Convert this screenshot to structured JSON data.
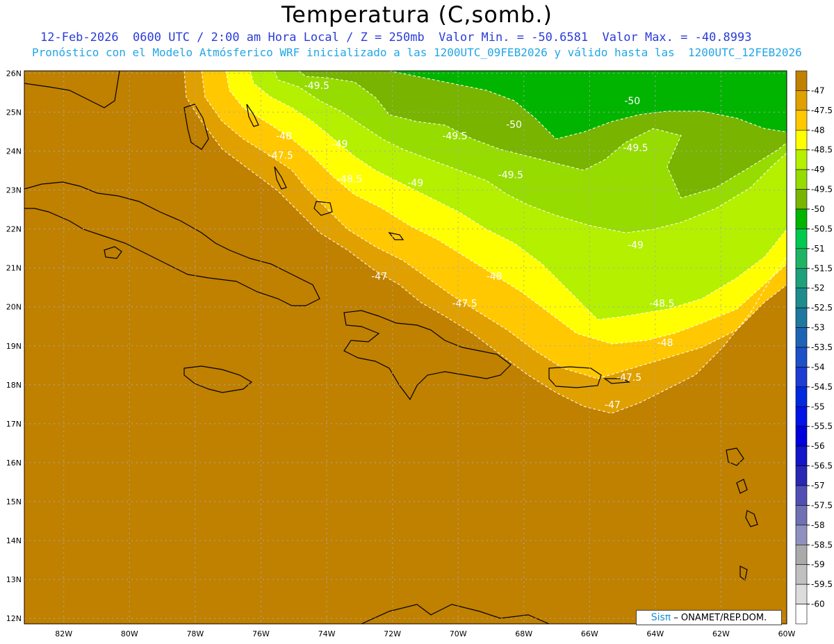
{
  "title": "Temperatura (C,somb.)",
  "subtitle_line1": "12-Feb-2026  0600 UTC / 2:00 am Hora Local / Z = 250mb  Valor Min. = -50.6581  Valor Max. = -40.8993",
  "subtitle_line2": "Pronóstico con el Modelo Atmósferico WRF inicializado a las 1200UTC_09FEB2026 y válido hasta las  1200UTC_12FEB2026",
  "credit": {
    "brand": "Sisπ",
    "text": "– ONAMET/REP.DOM."
  },
  "map": {
    "lon_labels": [
      "82W",
      "80W",
      "78W",
      "76W",
      "74W",
      "72W",
      "70W",
      "68W",
      "66W",
      "64W",
      "62W",
      "60W"
    ],
    "lat_labels": [
      "26N",
      "25N",
      "24N",
      "23N",
      "22N",
      "21N",
      "20N",
      "19N",
      "18N",
      "17N",
      "16N",
      "15N",
      "14N",
      "13N",
      "12N"
    ],
    "contour_labels": [
      {
        "text": "-49.5",
        "lon": -74.3,
        "lat": 25.6
      },
      {
        "text": "-50",
        "lon": -64.7,
        "lat": 25.2
      },
      {
        "text": "-50",
        "lon": -68.3,
        "lat": 24.6
      },
      {
        "text": "-49.5",
        "lon": -70.1,
        "lat": 24.3
      },
      {
        "text": "-49.5",
        "lon": -64.6,
        "lat": 24.0
      },
      {
        "text": "-49",
        "lon": -73.6,
        "lat": 24.1
      },
      {
        "text": "-48",
        "lon": -75.3,
        "lat": 24.3
      },
      {
        "text": "-47.5",
        "lon": -75.4,
        "lat": 23.8
      },
      {
        "text": "-49.5",
        "lon": -68.4,
        "lat": 23.3
      },
      {
        "text": "-48.5",
        "lon": -73.3,
        "lat": 23.2
      },
      {
        "text": "-49",
        "lon": -71.3,
        "lat": 23.1
      },
      {
        "text": "-49",
        "lon": -64.6,
        "lat": 21.5
      },
      {
        "text": "-47",
        "lon": -72.4,
        "lat": 20.7
      },
      {
        "text": "-48",
        "lon": -68.9,
        "lat": 20.7
      },
      {
        "text": "-47.5",
        "lon": -69.8,
        "lat": 20.0
      },
      {
        "text": "-48.5",
        "lon": -63.8,
        "lat": 20.0
      },
      {
        "text": "-48",
        "lon": -63.7,
        "lat": 19.0
      },
      {
        "text": "-47.5",
        "lon": -64.8,
        "lat": 18.1
      },
      {
        "text": "-47",
        "lon": -65.3,
        "lat": 17.4
      }
    ]
  },
  "legend": {
    "labels": [
      "-47",
      "-47.5",
      "-48",
      "-48.5",
      "-49",
      "-49.5",
      "-50",
      "-50.5",
      "-51",
      "-51.5",
      "-52",
      "-52.5",
      "-53",
      "-53.5",
      "-54",
      "-54.5",
      "-55",
      "-55.5",
      "-56",
      "-56.5",
      "-57",
      "-57.5",
      "-58",
      "-58.5",
      "-59",
      "-59.5",
      "-60"
    ],
    "colors": [
      "#c08000",
      "#e0a000",
      "#ffc800",
      "#ffff00",
      "#b4f000",
      "#96dc00",
      "#78b400",
      "#00b400",
      "#00c850",
      "#1eb464",
      "#1ea07a",
      "#1e8c8c",
      "#1e78a0",
      "#1e64b4",
      "#1e50c8",
      "#1e3cd2",
      "#0028dc",
      "#0014e6",
      "#0000dc",
      "#1414c8",
      "#2828b4",
      "#5050b4",
      "#7070b4",
      "#9090c0",
      "#aaaaaa",
      "#c0c0c0",
      "#dcdcdc",
      "#ffffff"
    ]
  }
}
